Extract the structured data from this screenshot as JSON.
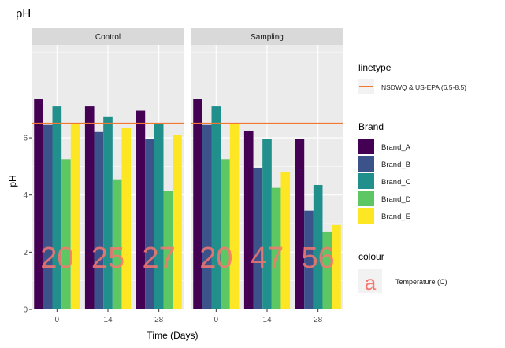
{
  "chart_data": {
    "type": "bar",
    "title": "pH",
    "xlabel": "Time (Days)",
    "ylabel": "pH",
    "ylim": [
      0,
      9.25
    ],
    "yticks": [
      0,
      2,
      4,
      6
    ],
    "categories": [
      "0",
      "14",
      "28"
    ],
    "panels": [
      {
        "name": "Control",
        "series": [
          {
            "name": "Brand_A",
            "values": [
              7.35,
              7.1,
              6.95
            ]
          },
          {
            "name": "Brand_B",
            "values": [
              6.45,
              6.2,
              5.95
            ]
          },
          {
            "name": "Brand_C",
            "values": [
              7.1,
              6.75,
              6.5
            ]
          },
          {
            "name": "Brand_D",
            "values": [
              5.25,
              4.55,
              4.15
            ]
          },
          {
            "name": "Brand_E",
            "values": [
              6.5,
              6.35,
              6.1
            ]
          }
        ],
        "temperature_labels": [
          "20",
          "25",
          "27"
        ]
      },
      {
        "name": "Sampling",
        "series": [
          {
            "name": "Brand_A",
            "values": [
              7.35,
              6.25,
              5.95
            ]
          },
          {
            "name": "Brand_B",
            "values": [
              6.45,
              4.95,
              3.45
            ]
          },
          {
            "name": "Brand_C",
            "values": [
              7.1,
              5.95,
              4.35
            ]
          },
          {
            "name": "Brand_D",
            "values": [
              5.25,
              4.25,
              2.7
            ]
          },
          {
            "name": "Brand_E",
            "values": [
              6.5,
              4.8,
              2.95
            ]
          }
        ],
        "temperature_labels": [
          "20",
          "47",
          "56"
        ]
      }
    ],
    "reference_line": {
      "value": 6.5,
      "label": "NSDWQ & US-EPA (6.5-8.5)",
      "color": "#F07830"
    },
    "legend": {
      "position": "right",
      "linetype_title": "linetype",
      "brand_title": "Brand",
      "colour_title": "colour",
      "colour_key_glyph": "a",
      "colour_entry": "Temperature (C)"
    },
    "colors": {
      "Brand_A": "#440154",
      "Brand_B": "#3B528B",
      "Brand_C": "#21908C",
      "Brand_D": "#5DC863",
      "Brand_E": "#FDE725",
      "temperature_text": "#F8766D",
      "panel_background": "#EBEBEB",
      "strip_background": "#D9D9D9",
      "gridline": "#FFFFFF"
    },
    "grid": true
  }
}
